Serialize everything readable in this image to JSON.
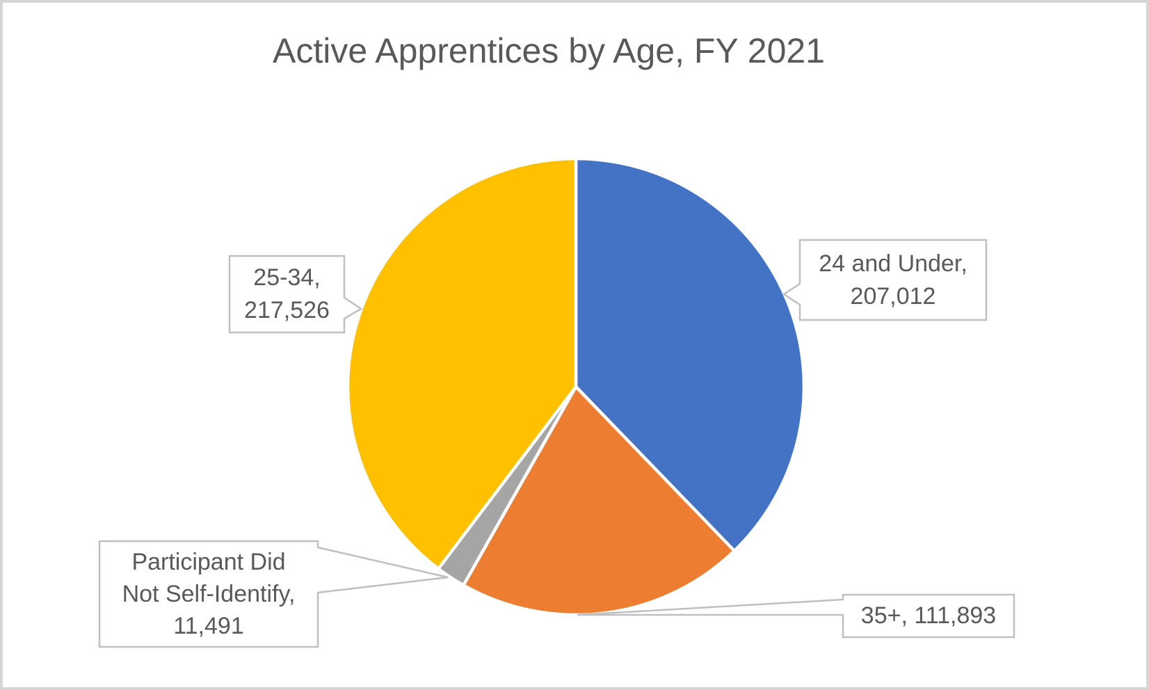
{
  "window": {
    "background": "#FFFFFF",
    "frame_color": "#D6D6D6"
  },
  "chart_data": {
    "type": "pie",
    "title": "Active Apprentices by Age, FY 2021",
    "start_angle_deg": 0,
    "direction": "clockwise",
    "legend_position": "none",
    "data_labels": "callouts-with-category-and-value",
    "series": [
      {
        "name": "24 and Under",
        "value": 207012,
        "color": "#4472C4"
      },
      {
        "name": "35+",
        "value": 111893,
        "color": "#ED7D31"
      },
      {
        "name": "Participant Did Not Self-Identify",
        "value": 11491,
        "color": "#A5A5A5"
      },
      {
        "name": "25-34",
        "value": 217526,
        "color": "#FFC000"
      }
    ]
  },
  "callouts": {
    "c24": {
      "line1": "24 and Under,",
      "line2": "207,012"
    },
    "c2534": {
      "line1": "25-34,",
      "line2": "217,526"
    },
    "cnsi": {
      "line1": "Participant Did",
      "line2": "Not Self-Identify,",
      "line3": "11,491"
    },
    "c35": {
      "line1": "35+, 111,893"
    }
  },
  "style": {
    "title_color": "#595959",
    "label_color": "#595959",
    "callout_border_color": "#BFBFBF",
    "slice_separator_color": "#FFFFFF"
  }
}
